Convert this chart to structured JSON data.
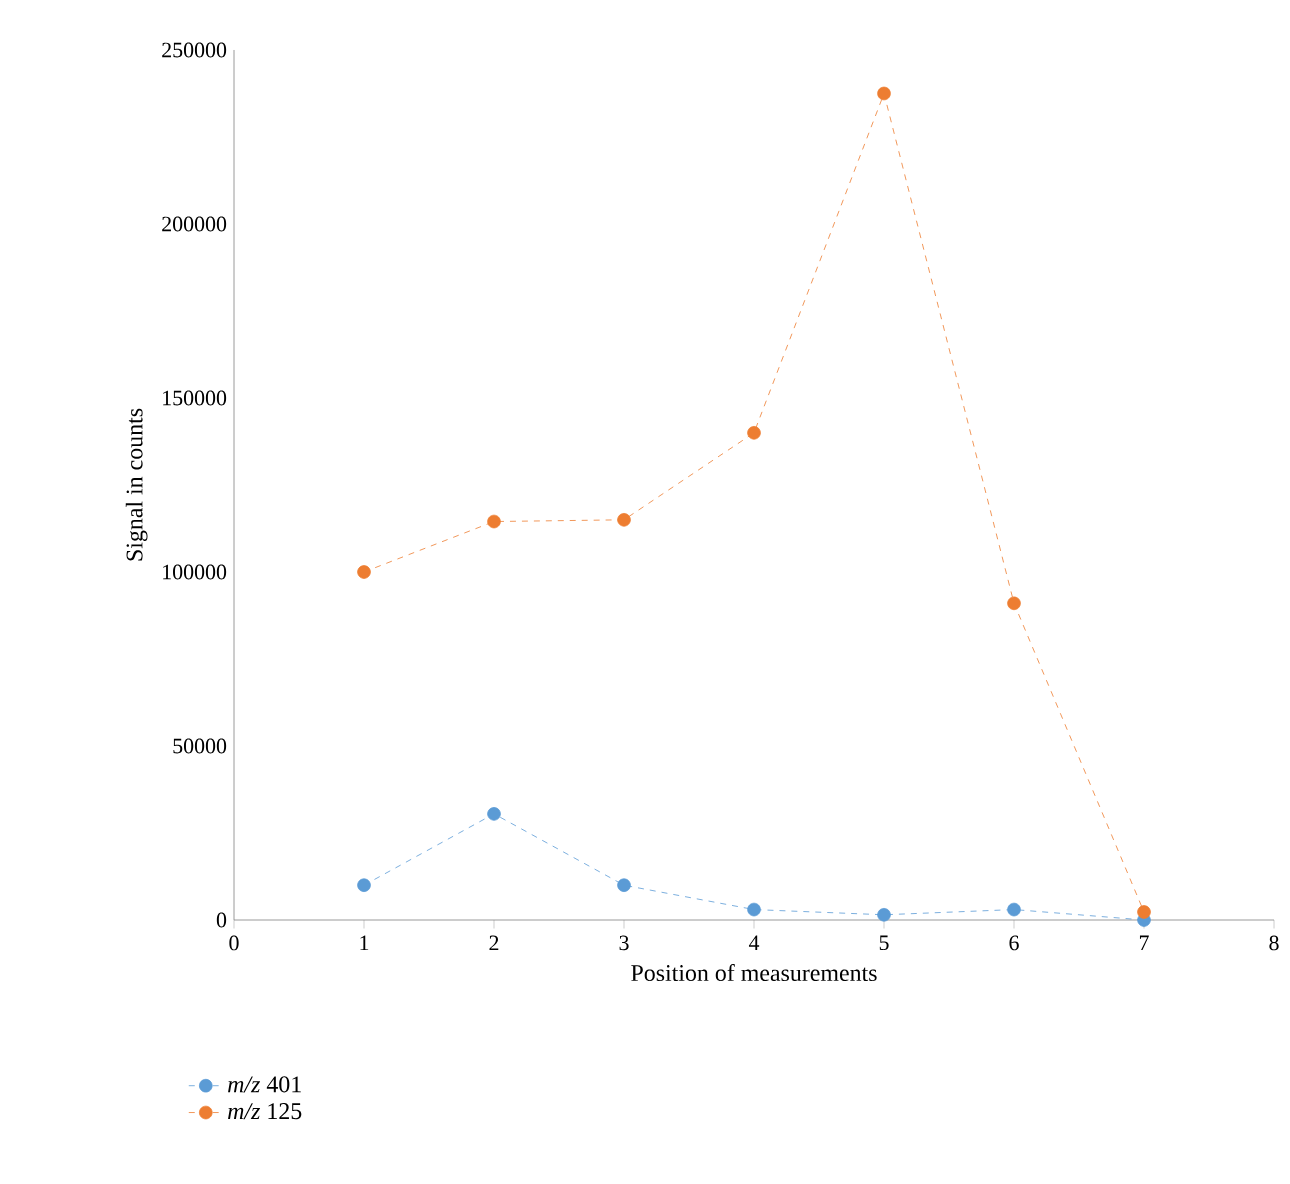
{
  "chart_data": {
    "type": "line",
    "xlabel": "Position of measurements",
    "ylabel": "Signal in counts",
    "x": [
      1,
      2,
      3,
      4,
      5,
      6,
      7
    ],
    "series": [
      {
        "name": "*m/z* 401",
        "color": "#5b9bd5",
        "values": [
          10000,
          30500,
          10000,
          3000,
          1500,
          3000,
          0
        ]
      },
      {
        "name": "*m/z* 125",
        "color": "#ed7d31",
        "values": [
          100000,
          114500,
          115000,
          140000,
          237500,
          91000,
          2300
        ]
      }
    ],
    "xlim": [
      0,
      8
    ],
    "xticks": [
      0,
      1,
      2,
      3,
      4,
      5,
      6,
      7,
      8
    ],
    "ylim": [
      0,
      250000
    ],
    "yticks": [
      0,
      50000,
      100000,
      150000,
      200000,
      250000
    ],
    "grid": false,
    "legend": "bottom left",
    "marker": "circle",
    "line_style": "dashed"
  }
}
